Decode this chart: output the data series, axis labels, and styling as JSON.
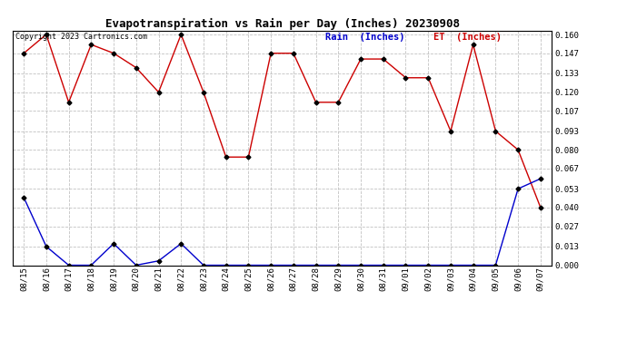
{
  "title": "Evapotranspiration vs Rain per Day (Inches) 20230908",
  "copyright": "Copyright 2023 Cartronics.com",
  "legend_rain": "Rain  (Inches)",
  "legend_et": "ET  (Inches)",
  "dates": [
    "08/15",
    "08/16",
    "08/17",
    "08/18",
    "08/19",
    "08/20",
    "08/21",
    "08/22",
    "08/23",
    "08/24",
    "08/25",
    "08/26",
    "08/27",
    "08/28",
    "08/29",
    "08/30",
    "08/31",
    "09/01",
    "09/02",
    "09/03",
    "09/04",
    "09/05",
    "09/06",
    "09/07"
  ],
  "et_values": [
    0.147,
    0.16,
    0.113,
    0.153,
    0.147,
    0.137,
    0.12,
    0.16,
    0.12,
    0.075,
    0.075,
    0.147,
    0.147,
    0.113,
    0.113,
    0.143,
    0.143,
    0.13,
    0.13,
    0.093,
    0.153,
    0.093,
    0.08,
    0.04
  ],
  "rain_values": [
    0.047,
    0.013,
    0.0,
    0.0,
    0.015,
    0.0,
    0.003,
    0.015,
    0.0,
    0.0,
    0.0,
    0.0,
    0.0,
    0.0,
    0.0,
    0.0,
    0.0,
    0.0,
    0.0,
    0.0,
    0.0,
    0.0,
    0.053,
    0.06
  ],
  "et_color": "#cc0000",
  "rain_color": "#0000cc",
  "background_color": "#ffffff",
  "grid_color": "#bbbbbb",
  "ylim": [
    0.0,
    0.1627
  ],
  "yticks": [
    0.0,
    0.013,
    0.027,
    0.04,
    0.053,
    0.067,
    0.08,
    0.093,
    0.107,
    0.12,
    0.133,
    0.147,
    0.16
  ],
  "title_fontsize": 9,
  "copyright_fontsize": 6,
  "legend_fontsize": 7.5,
  "tick_fontsize": 6.5
}
